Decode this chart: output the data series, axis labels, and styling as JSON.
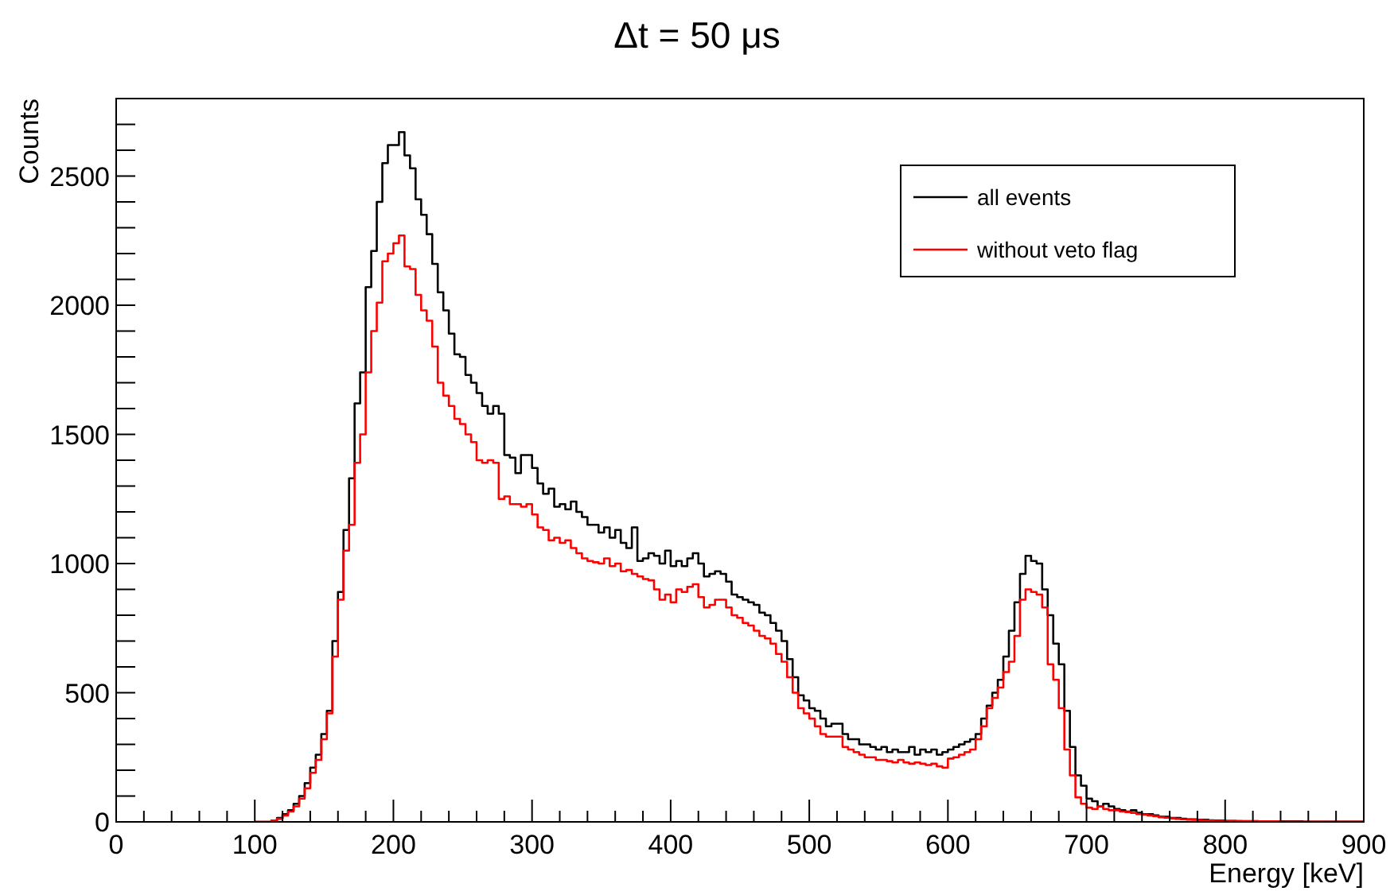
{
  "chart_data": {
    "type": "histogram",
    "title": "Δt = 50 μs",
    "xlabel": "Energy [keV]",
    "ylabel": "Counts",
    "bins": [
      100,
      104,
      108,
      112,
      116,
      120,
      124,
      128,
      132,
      136,
      140,
      144,
      148,
      152,
      156,
      160,
      164,
      168,
      172,
      176,
      180,
      184,
      188,
      192,
      196,
      200,
      204,
      208,
      212,
      216,
      220,
      224,
      228,
      232,
      236,
      240,
      244,
      248,
      252,
      256,
      260,
      264,
      268,
      272,
      276,
      280,
      284,
      288,
      292,
      296,
      300,
      304,
      308,
      312,
      316,
      320,
      324,
      328,
      332,
      336,
      340,
      344,
      348,
      352,
      356,
      360,
      364,
      368,
      372,
      376,
      380,
      384,
      388,
      392,
      396,
      400,
      404,
      408,
      412,
      416,
      420,
      424,
      428,
      432,
      436,
      440,
      444,
      448,
      452,
      456,
      460,
      464,
      468,
      472,
      476,
      480,
      484,
      488,
      492,
      496,
      500,
      504,
      508,
      512,
      516,
      520,
      524,
      528,
      532,
      536,
      540,
      544,
      548,
      552,
      556,
      560,
      564,
      568,
      572,
      576,
      580,
      584,
      588,
      592,
      596,
      600,
      604,
      608,
      612,
      616,
      620,
      624,
      628,
      632,
      636,
      640,
      644,
      648,
      652,
      656,
      660,
      664,
      668,
      672,
      676,
      680,
      684,
      688,
      692,
      696,
      700,
      704,
      708,
      712,
      716,
      720,
      724,
      728,
      732,
      736,
      740,
      744,
      748,
      752,
      756,
      760,
      764,
      768,
      772,
      776,
      780,
      784,
      788,
      792,
      796,
      800,
      804,
      808,
      812,
      816,
      820,
      824,
      828,
      832,
      836,
      840,
      844,
      848,
      852,
      856,
      860,
      864,
      868,
      872,
      876,
      880,
      884,
      888,
      892,
      896,
      900
    ],
    "series": [
      {
        "name": "all events",
        "color": "#000000",
        "values": [
          0,
          0,
          0,
          5,
          15,
          30,
          45,
          70,
          100,
          150,
          210,
          260,
          340,
          430,
          700,
          890,
          1130,
          1330,
          1620,
          1740,
          2070,
          2210,
          2400,
          2550,
          2620,
          2620,
          2670,
          2580,
          2530,
          2410,
          2350,
          2275,
          2160,
          2050,
          1980,
          1890,
          1810,
          1800,
          1730,
          1700,
          1660,
          1610,
          1580,
          1610,
          1580,
          1420,
          1410,
          1350,
          1420,
          1420,
          1370,
          1310,
          1270,
          1290,
          1220,
          1230,
          1210,
          1240,
          1200,
          1180,
          1150,
          1150,
          1120,
          1140,
          1100,
          1130,
          1080,
          1060,
          1140,
          1010,
          1020,
          1040,
          1030,
          1000,
          1050,
          990,
          1010,
          990,
          1020,
          1040,
          1000,
          950,
          960,
          970,
          960,
          930,
          880,
          870,
          860,
          850,
          840,
          810,
          800,
          770,
          740,
          700,
          630,
          560,
          490,
          470,
          440,
          430,
          400,
          370,
          380,
          380,
          340,
          320,
          320,
          300,
          300,
          290,
          280,
          290,
          270,
          280,
          270,
          270,
          290,
          260,
          280,
          270,
          280,
          260,
          270,
          280,
          290,
          300,
          310,
          320,
          340,
          400,
          450,
          500,
          550,
          640,
          740,
          850,
          960,
          1030,
          1010,
          1000,
          900,
          800,
          690,
          610,
          430,
          290,
          180,
          140,
          90,
          80,
          60,
          70,
          60,
          50,
          45,
          40,
          45,
          35,
          30,
          30,
          25,
          20,
          20,
          15,
          15,
          12,
          10,
          10,
          8,
          8,
          6,
          5,
          5,
          4,
          4,
          3,
          3,
          3,
          3,
          2,
          2,
          2,
          2,
          2,
          2,
          2,
          2,
          1,
          1,
          1,
          1,
          1,
          1,
          1,
          1,
          1,
          1,
          1
        ]
      },
      {
        "name": "without veto flag",
        "color": "#ff0000",
        "values": [
          0,
          0,
          0,
          5,
          12,
          25,
          40,
          60,
          90,
          130,
          190,
          240,
          320,
          420,
          640,
          860,
          1050,
          1150,
          1390,
          1500,
          1740,
          1900,
          2010,
          2170,
          2200,
          2240,
          2270,
          2150,
          2140,
          2040,
          1980,
          1940,
          1840,
          1700,
          1650,
          1610,
          1560,
          1540,
          1500,
          1470,
          1400,
          1390,
          1400,
          1390,
          1250,
          1260,
          1230,
          1230,
          1220,
          1230,
          1190,
          1140,
          1130,
          1090,
          1100,
          1080,
          1090,
          1060,
          1040,
          1020,
          1010,
          1005,
          1000,
          1020,
          990,
          1000,
          970,
          975,
          960,
          950,
          940,
          935,
          900,
          860,
          880,
          850,
          900,
          890,
          910,
          920,
          870,
          830,
          840,
          860,
          860,
          830,
          800,
          790,
          770,
          760,
          740,
          720,
          710,
          690,
          650,
          620,
          560,
          500,
          440,
          420,
          400,
          370,
          340,
          330,
          330,
          330,
          290,
          280,
          270,
          260,
          250,
          250,
          240,
          240,
          235,
          230,
          240,
          230,
          225,
          230,
          225,
          220,
          225,
          215,
          210,
          245,
          250,
          260,
          270,
          280,
          320,
          370,
          440,
          480,
          520,
          580,
          620,
          720,
          860,
          900,
          890,
          880,
          830,
          610,
          550,
          440,
          280,
          180,
          95,
          70,
          55,
          50,
          60,
          50,
          45,
          45,
          40,
          38,
          35,
          30,
          28,
          25,
          22,
          18,
          16,
          14,
          12,
          10,
          9,
          8,
          7,
          6,
          5,
          4,
          4,
          3,
          3,
          3,
          2,
          2,
          2,
          2,
          2,
          2,
          2,
          1,
          1,
          1,
          1,
          1,
          1,
          1,
          1,
          1,
          1,
          1,
          1,
          1,
          1,
          1
        ]
      }
    ],
    "xlim": [
      0,
      900
    ],
    "xticks": [
      0,
      {
        "value": 20,
        "label": null
      },
      {
        "value": 40,
        "label": null
      },
      {
        "value": 60,
        "label": null
      },
      {
        "value": 80,
        "label": null
      },
      100,
      {
        "value": 120,
        "label": null
      },
      {
        "value": 140,
        "label": null
      },
      {
        "value": 160,
        "label": null
      },
      {
        "value": 180,
        "label": null
      },
      200,
      {
        "value": 220,
        "label": null
      },
      {
        "value": 240,
        "label": null
      },
      {
        "value": 260,
        "label": null
      },
      {
        "value": 280,
        "label": null
      },
      300,
      {
        "value": 320,
        "label": null
      },
      {
        "value": 340,
        "label": null
      },
      {
        "value": 360,
        "label": null
      },
      {
        "value": 380,
        "label": null
      },
      400,
      {
        "value": 420,
        "label": null
      },
      {
        "value": 440,
        "label": null
      },
      {
        "value": 460,
        "label": null
      },
      {
        "value": 480,
        "label": null
      },
      500,
      {
        "value": 520,
        "label": null
      },
      {
        "value": 540,
        "label": null
      },
      {
        "value": 560,
        "label": null
      },
      {
        "value": 580,
        "label": null
      },
      600,
      {
        "value": 620,
        "label": null
      },
      {
        "value": 640,
        "label": null
      },
      {
        "value": 660,
        "label": null
      },
      {
        "value": 680,
        "label": null
      },
      700,
      {
        "value": 720,
        "label": null
      },
      {
        "value": 740,
        "label": null
      },
      {
        "value": 760,
        "label": null
      },
      {
        "value": 780,
        "label": null
      },
      800,
      {
        "value": 820,
        "label": null
      },
      {
        "value": 840,
        "label": null
      },
      {
        "value": 860,
        "label": null
      },
      {
        "value": 880,
        "label": null
      },
      900
    ],
    "ylim": [
      0,
      2800
    ],
    "yticks": [
      0,
      {
        "value": 100,
        "label": null
      },
      {
        "value": 200,
        "label": null
      },
      {
        "value": 300,
        "label": null
      },
      {
        "value": 400,
        "label": null
      },
      500,
      {
        "value": 600,
        "label": null
      },
      {
        "value": 700,
        "label": null
      },
      {
        "value": 800,
        "label": null
      },
      {
        "value": 900,
        "label": null
      },
      1000,
      {
        "value": 1100,
        "label": null
      },
      {
        "value": 1200,
        "label": null
      },
      {
        "value": 1300,
        "label": null
      },
      {
        "value": 1400,
        "label": null
      },
      1500,
      {
        "value": 1600,
        "label": null
      },
      {
        "value": 1700,
        "label": null
      },
      {
        "value": 1800,
        "label": null
      },
      {
        "value": 1900,
        "label": null
      },
      2000,
      {
        "value": 2100,
        "label": null
      },
      {
        "value": 2200,
        "label": null
      },
      {
        "value": 2300,
        "label": null
      },
      {
        "value": 2400,
        "label": null
      },
      2500,
      {
        "value": 2600,
        "label": null
      },
      {
        "value": 2700,
        "label": null
      },
      {
        "value": 2800,
        "label": null
      }
    ],
    "legend": "top right",
    "grid": false
  }
}
